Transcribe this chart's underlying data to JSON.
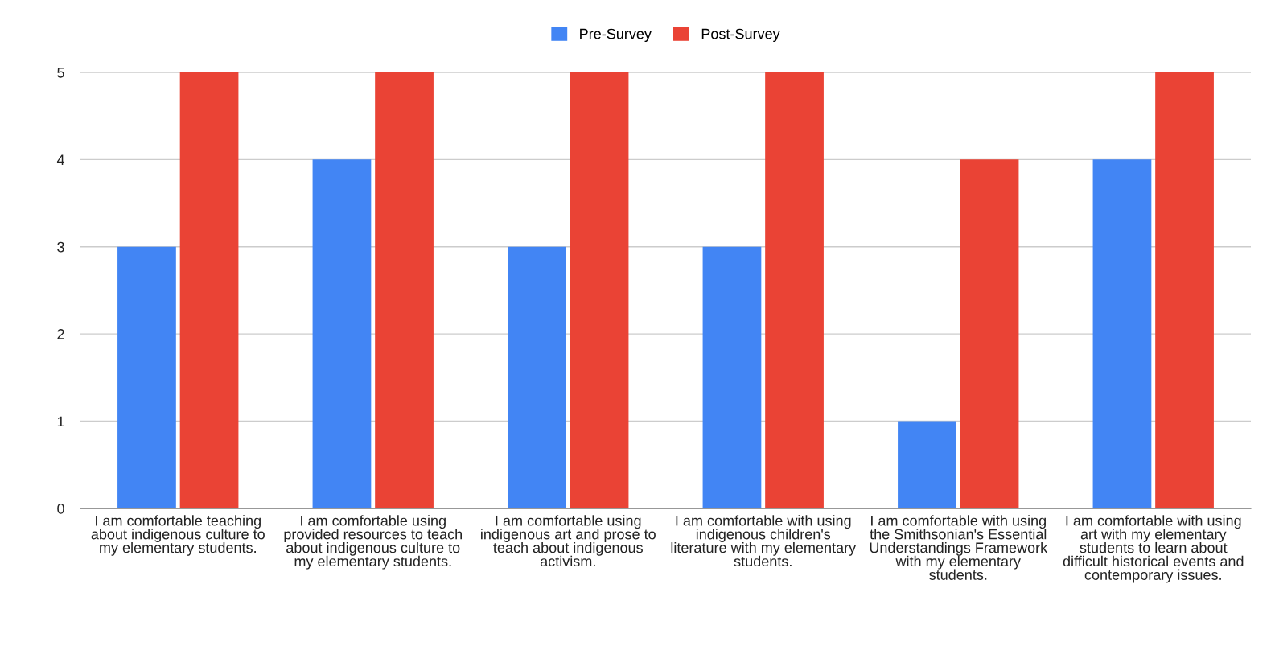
{
  "chart_data": {
    "type": "bar",
    "categories": [
      "I am comfortable teaching about indigenous culture to my elementary students.",
      "I am comfortable using provided resources to teach about indigenous culture to my elementary students.",
      "I am comfortable using indigenous art and prose to teach about indigenous activism.",
      "I am comfortable with using indigenous children's literature with my elementary students.",
      "I am comfortable with using the Smithsonian's Essential Understandings Framework with my elementary students.",
      "I am comfortable with using art with my elementary students to learn about difficult historical events and contemporary issues."
    ],
    "series": [
      {
        "name": "Pre-Survey",
        "color": "#4285f4",
        "values": [
          3,
          4,
          3,
          3,
          1,
          4
        ]
      },
      {
        "name": "Post-Survey",
        "color": "#ea4335",
        "values": [
          5,
          5,
          5,
          5,
          4,
          5
        ]
      }
    ],
    "ylim": [
      0,
      5
    ],
    "yticks": [
      0,
      1,
      2,
      3,
      4,
      5
    ],
    "grid": "y",
    "legend": "top"
  }
}
